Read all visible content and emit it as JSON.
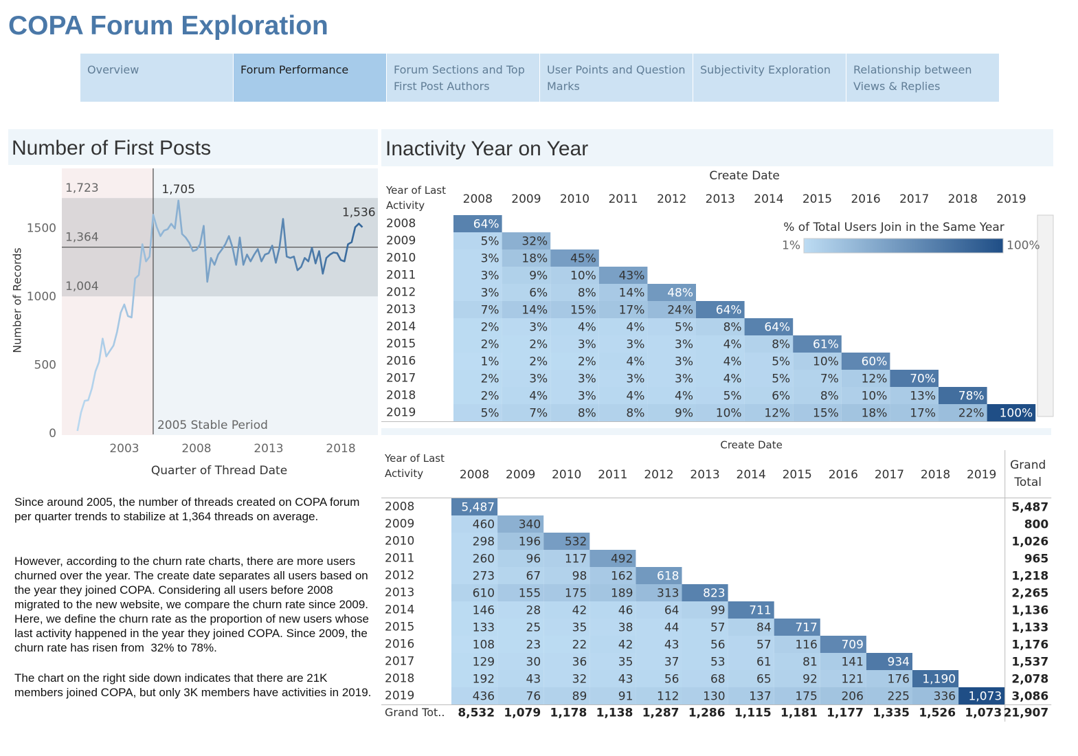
{
  "header": {
    "title": "COPA Forum Exploration"
  },
  "tabs": {
    "items": [
      "Overview",
      "Forum Performance",
      "Forum Sections and Top First Post Authors",
      "User Points and Question Marks",
      "Subjectivity Exploration",
      "Relationship between Views & Replies"
    ],
    "active": 1
  },
  "chart_data": [
    {
      "type": "line",
      "title": "Number of First Posts",
      "x_label": "Quarter of Thread Date",
      "y_label": "Number of Records",
      "x": [
        1999.75,
        2000,
        2000.25,
        2000.5,
        2000.75,
        2001,
        2001.25,
        2001.5,
        2001.75,
        2002,
        2002.25,
        2002.5,
        2002.75,
        2003,
        2003.25,
        2003.5,
        2003.75,
        2004,
        2004.25,
        2004.5,
        2004.75,
        2005,
        2005.25,
        2005.5,
        2005.75,
        2006,
        2006.25,
        2006.5,
        2006.75,
        2007,
        2007.25,
        2007.5,
        2007.75,
        2008,
        2008.25,
        2008.5,
        2008.75,
        2009,
        2009.25,
        2009.5,
        2009.75,
        2010,
        2010.25,
        2010.5,
        2010.75,
        2011,
        2011.25,
        2011.5,
        2011.75,
        2012,
        2012.25,
        2012.5,
        2012.75,
        2013,
        2013.25,
        2013.5,
        2013.75,
        2014,
        2014.25,
        2014.5,
        2014.75,
        2015,
        2015.25,
        2015.5,
        2015.75,
        2016,
        2016.25,
        2016.5,
        2016.75,
        2017,
        2017.25,
        2017.5,
        2017.75,
        2018,
        2018.25,
        2018.5,
        2018.75,
        2019,
        2019.25,
        2019.5
      ],
      "values": [
        20,
        155,
        240,
        245,
        330,
        455,
        525,
        695,
        565,
        605,
        645,
        745,
        885,
        945,
        860,
        850,
        1135,
        1160,
        1385,
        1260,
        1295,
        1600,
        1510,
        1445,
        1485,
        1495,
        1535,
        1500,
        1705,
        1460,
        1435,
        1395,
        1335,
        1345,
        1385,
        1520,
        1110,
        1285,
        1235,
        1310,
        1345,
        1385,
        1445,
        1360,
        1235,
        1435,
        1235,
        1310,
        1260,
        1310,
        1350,
        1260,
        1310,
        1320,
        1375,
        1250,
        1360,
        1570,
        1295,
        1285,
        1295,
        1195,
        1220,
        1285,
        1260,
        1360,
        1245,
        1335,
        1170,
        1285,
        1310,
        1325,
        1320,
        1270,
        1260,
        1385,
        1400,
        1510,
        1536,
        1510
      ],
      "color_range": [
        "#b9d8f0",
        "#2c5f94"
      ],
      "xlim": [
        1998.67,
        2020.57
      ],
      "xticks": [
        2003,
        2008,
        2013,
        2018
      ],
      "ylim": [
        0,
        1940
      ],
      "yticks": [
        0,
        500,
        1000,
        1500
      ],
      "grid": false,
      "reference_band": {
        "high": {
          "value": 1723,
          "label": "1,723"
        },
        "average": {
          "value": 1364,
          "label": "1,364"
        },
        "low": {
          "value": 1004,
          "label": "1,004"
        }
      },
      "reference_line": {
        "x": 2005,
        "label": "2005 Stable Period"
      },
      "annotations": [
        {
          "x": 2006.75,
          "y": 1705,
          "label": "1,705"
        },
        {
          "x": 2019.25,
          "y": 1536,
          "label": "1,536"
        }
      ]
    },
    {
      "type": "heatmap",
      "title": "Inactivity Year on Year",
      "x_label": "Create Date",
      "y_label": "Year of Last Activity",
      "columns": [
        "2008",
        "2009",
        "2010",
        "2011",
        "2012",
        "2013",
        "2014",
        "2015",
        "2016",
        "2017",
        "2018",
        "2019"
      ],
      "rows": [
        "2008",
        "2009",
        "2010",
        "2011",
        "2012",
        "2013",
        "2014",
        "2015",
        "2016",
        "2017",
        "2018",
        "2019"
      ],
      "values": [
        [
          64
        ],
        [
          5,
          32
        ],
        [
          3,
          18,
          45
        ],
        [
          3,
          9,
          10,
          43
        ],
        [
          3,
          6,
          8,
          14,
          48
        ],
        [
          7,
          14,
          15,
          17,
          24,
          64
        ],
        [
          2,
          3,
          4,
          4,
          5,
          8,
          64
        ],
        [
          2,
          2,
          3,
          3,
          3,
          4,
          8,
          61
        ],
        [
          1,
          2,
          2,
          4,
          3,
          4,
          5,
          10,
          60
        ],
        [
          2,
          3,
          3,
          3,
          3,
          4,
          5,
          7,
          12,
          70
        ],
        [
          2,
          4,
          3,
          4,
          4,
          5,
          6,
          8,
          10,
          13,
          78
        ],
        [
          5,
          7,
          8,
          8,
          9,
          10,
          12,
          15,
          18,
          17,
          22,
          100
        ]
      ],
      "value_labels": [
        [
          "64%"
        ],
        [
          "5%",
          "32%"
        ],
        [
          "3%",
          "18%",
          "45%"
        ],
        [
          "3%",
          "9%",
          "10%",
          "43%"
        ],
        [
          "3%",
          "6%",
          "8%",
          "14%",
          "48%"
        ],
        [
          "7%",
          "14%",
          "15%",
          "17%",
          "24%",
          "64%"
        ],
        [
          "2%",
          "3%",
          "4%",
          "4%",
          "5%",
          "8%",
          "64%"
        ],
        [
          "2%",
          "2%",
          "3%",
          "3%",
          "3%",
          "4%",
          "8%",
          "61%"
        ],
        [
          "1%",
          "2%",
          "2%",
          "4%",
          "3%",
          "4%",
          "5%",
          "10%",
          "60%"
        ],
        [
          "2%",
          "3%",
          "3%",
          "3%",
          "3%",
          "4%",
          "5%",
          "7%",
          "12%",
          "70%"
        ],
        [
          "2%",
          "4%",
          "3%",
          "4%",
          "4%",
          "5%",
          "6%",
          "8%",
          "10%",
          "13%",
          "78%"
        ],
        [
          "5%",
          "7%",
          "8%",
          "8%",
          "9%",
          "10%",
          "12%",
          "15%",
          "18%",
          "17%",
          "22%",
          "100%"
        ]
      ],
      "color_range": [
        "#bddcf3",
        "#1f4e86"
      ],
      "legend": {
        "title": "% of Total Users Join in the Same Year",
        "min": {
          "value": 1,
          "label": "1%"
        },
        "max": {
          "value": 100,
          "label": "100%"
        }
      }
    },
    {
      "type": "heatmap",
      "x_label": "Create Date",
      "y_label": "Year of Last Activity",
      "columns": [
        "2008",
        "2009",
        "2010",
        "2011",
        "2012",
        "2013",
        "2014",
        "2015",
        "2016",
        "2017",
        "2018",
        "2019"
      ],
      "rows": [
        "2008",
        "2009",
        "2010",
        "2011",
        "2012",
        "2013",
        "2014",
        "2015",
        "2016",
        "2017",
        "2018",
        "2019"
      ],
      "values": [
        [
          5487
        ],
        [
          460,
          340
        ],
        [
          298,
          196,
          532
        ],
        [
          260,
          96,
          117,
          492
        ],
        [
          273,
          67,
          98,
          162,
          618
        ],
        [
          610,
          155,
          175,
          189,
          313,
          823
        ],
        [
          146,
          28,
          42,
          46,
          64,
          99,
          711
        ],
        [
          133,
          25,
          35,
          38,
          44,
          57,
          84,
          717
        ],
        [
          108,
          23,
          22,
          42,
          43,
          56,
          57,
          116,
          709
        ],
        [
          129,
          30,
          36,
          35,
          37,
          53,
          61,
          81,
          141,
          934
        ],
        [
          192,
          43,
          32,
          43,
          56,
          68,
          65,
          92,
          121,
          176,
          1190
        ],
        [
          436,
          76,
          89,
          91,
          112,
          130,
          137,
          175,
          206,
          225,
          336,
          1073
        ]
      ],
      "value_labels": [
        [
          "5,487"
        ],
        [
          "460",
          "340"
        ],
        [
          "298",
          "196",
          "532"
        ],
        [
          "260",
          "96",
          "117",
          "492"
        ],
        [
          "273",
          "67",
          "98",
          "162",
          "618"
        ],
        [
          "610",
          "155",
          "175",
          "189",
          "313",
          "823"
        ],
        [
          "146",
          "28",
          "42",
          "46",
          "64",
          "99",
          "711"
        ],
        [
          "133",
          "25",
          "35",
          "38",
          "44",
          "57",
          "84",
          "717"
        ],
        [
          "108",
          "23",
          "22",
          "42",
          "43",
          "56",
          "57",
          "116",
          "709"
        ],
        [
          "129",
          "30",
          "36",
          "35",
          "37",
          "53",
          "61",
          "81",
          "141",
          "934"
        ],
        [
          "192",
          "43",
          "32",
          "43",
          "56",
          "68",
          "65",
          "92",
          "121",
          "176",
          "1,190"
        ],
        [
          "436",
          "76",
          "89",
          "91",
          "112",
          "130",
          "137",
          "175",
          "206",
          "225",
          "336",
          "1,073"
        ]
      ],
      "total_column_label": "Grand Total",
      "total_row_label": "Grand Tot..",
      "row_totals": {
        "values": [
          5487,
          800,
          1026,
          965,
          1218,
          2265,
          1136,
          1133,
          1176,
          1537,
          2078,
          3086
        ],
        "value_labels": [
          "5,487",
          "800",
          "1,026",
          "965",
          "1,218",
          "2,265",
          "1,136",
          "1,133",
          "1,176",
          "1,537",
          "2,078",
          "3,086"
        ]
      },
      "column_totals": {
        "values": [
          8532,
          1079,
          1178,
          1138,
          1287,
          1286,
          1115,
          1181,
          1177,
          1335,
          1526,
          1073
        ],
        "value_labels": [
          "8,532",
          "1,079",
          "1,178",
          "1,138",
          "1,287",
          "1,286",
          "1,115",
          "1,181",
          "1,177",
          "1,335",
          "1,526",
          "1,073"
        ]
      },
      "grand_total": {
        "value": 21907,
        "label": "21,907"
      }
    }
  ],
  "notes": {
    "paragraphs": [
      "Since around 2005, the number of threads created on COPA forum per quarter trends to stabilize at 1,364 threads on average.",
      "However, according to the churn rate charts, there are more users churned over the year. The create date separates all users based on the year they joined COPA. Considering all users before 2008 migrated to the new website, we compare the churn rate since 2009. Here, we define the churn rate as the proportion of new users whose last activity happened in the year they joined COPA. Since 2009, the churn rate has risen from  32% to 78%.",
      "The chart on the right side down indicates that there are 21K members joined COPA, but only 3K members have activities in 2019."
    ]
  }
}
